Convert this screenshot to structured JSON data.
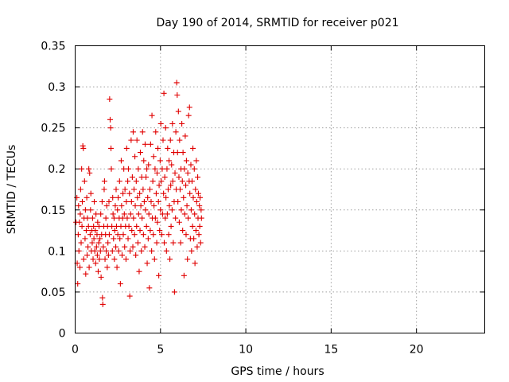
{
  "chart_data": {
    "type": "scatter",
    "title": "Day 190 of 2014, SRMTID for receiver p021",
    "xlabel": "GPS time / hours",
    "ylabel": "SRMTID / TECUs",
    "xlim": [
      0,
      24
    ],
    "ylim": [
      0,
      0.35
    ],
    "xticks": [
      0,
      5,
      10,
      15,
      20
    ],
    "xtick_labels": [
      "0",
      "5",
      "10",
      "15",
      "20"
    ],
    "yticks": [
      0,
      0.05,
      0.1,
      0.15,
      0.2,
      0.25,
      0.3,
      0.35
    ],
    "ytick_labels": [
      "0",
      "0.05",
      "0.1",
      "0.15",
      "0.2",
      "0.25",
      "0.3",
      "0.35"
    ],
    "grid": true,
    "marker": "+",
    "color": "#e00000",
    "series": [
      {
        "name": "p021",
        "points": [
          [
            0.05,
            0.135
          ],
          [
            0.1,
            0.165
          ],
          [
            0.12,
            0.085
          ],
          [
            0.15,
            0.06
          ],
          [
            0.18,
            0.12
          ],
          [
            0.2,
            0.155
          ],
          [
            0.22,
            0.1
          ],
          [
            0.25,
            0.135
          ],
          [
            0.28,
            0.08
          ],
          [
            0.3,
            0.145
          ],
          [
            0.32,
            0.175
          ],
          [
            0.35,
            0.11
          ],
          [
            0.38,
            0.2
          ],
          [
            0.4,
            0.13
          ],
          [
            0.42,
            0.16
          ],
          [
            0.45,
            0.228
          ],
          [
            0.48,
            0.225
          ],
          [
            0.5,
            0.09
          ],
          [
            0.52,
            0.14
          ],
          [
            0.55,
            0.185
          ],
          [
            0.58,
            0.115
          ],
          [
            0.6,
            0.15
          ],
          [
            0.62,
            0.072
          ],
          [
            0.65,
            0.125
          ],
          [
            0.68,
            0.165
          ],
          [
            0.7,
            0.095
          ],
          [
            0.72,
            0.14
          ],
          [
            0.75,
            0.105
          ],
          [
            0.78,
            0.13
          ],
          [
            0.8,
            0.2
          ],
          [
            0.82,
            0.08
          ],
          [
            0.85,
            0.195
          ],
          [
            0.88,
            0.12
          ],
          [
            0.9,
            0.15
          ],
          [
            0.92,
            0.17
          ],
          [
            0.95,
            0.1
          ],
          [
            0.98,
            0.125
          ],
          [
            1.0,
            0.11
          ],
          [
            1.02,
            0.14
          ],
          [
            1.05,
            0.09
          ],
          [
            1.08,
            0.13
          ],
          [
            1.1,
            0.115
          ],
          [
            1.12,
            0.16
          ],
          [
            1.15,
            0.1
          ],
          [
            1.18,
            0.125
          ],
          [
            1.2,
            0.085
          ],
          [
            1.22,
            0.145
          ],
          [
            1.25,
            0.105
          ],
          [
            1.28,
            0.12
          ],
          [
            1.3,
            0.095
          ],
          [
            1.32,
            0.135
          ],
          [
            1.35,
            0.075
          ],
          [
            1.38,
            0.11
          ],
          [
            1.4,
            0.13
          ],
          [
            1.42,
            0.09
          ],
          [
            1.45,
            0.115
          ],
          [
            1.48,
            0.1
          ],
          [
            1.5,
            0.145
          ],
          [
            1.52,
            0.068
          ],
          [
            1.55,
            0.12
          ],
          [
            1.58,
            0.16
          ],
          [
            1.6,
            0.043
          ],
          [
            1.62,
            0.035
          ],
          [
            1.65,
            0.105
          ],
          [
            1.68,
            0.13
          ],
          [
            1.7,
            0.175
          ],
          [
            1.72,
            0.185
          ],
          [
            1.75,
            0.09
          ],
          [
            1.78,
            0.12
          ],
          [
            1.8,
            0.14
          ],
          [
            1.82,
            0.1
          ],
          [
            1.85,
            0.155
          ],
          [
            1.88,
            0.08
          ],
          [
            1.9,
            0.13
          ],
          [
            1.92,
            0.11
          ],
          [
            1.95,
            0.095
          ],
          [
            1.98,
            0.16
          ],
          [
            2.0,
            0.12
          ],
          [
            2.02,
            0.285
          ],
          [
            2.05,
            0.26
          ],
          [
            2.08,
            0.25
          ],
          [
            2.1,
            0.225
          ],
          [
            2.12,
            0.2
          ],
          [
            2.15,
            0.13
          ],
          [
            2.18,
            0.1
          ],
          [
            2.2,
            0.165
          ],
          [
            2.22,
            0.145
          ],
          [
            2.25,
            0.115
          ],
          [
            2.28,
            0.14
          ],
          [
            2.3,
            0.09
          ],
          [
            2.32,
            0.125
          ],
          [
            2.35,
            0.155
          ],
          [
            2.38,
            0.105
          ],
          [
            2.4,
            0.175
          ],
          [
            2.42,
            0.13
          ],
          [
            2.45,
            0.08
          ],
          [
            2.48,
            0.15
          ],
          [
            2.5,
            0.12
          ],
          [
            2.52,
            0.165
          ],
          [
            2.55,
            0.1
          ],
          [
            2.58,
            0.14
          ],
          [
            2.6,
            0.185
          ],
          [
            2.62,
            0.115
          ],
          [
            2.65,
            0.06
          ],
          [
            2.68,
            0.13
          ],
          [
            2.7,
            0.21
          ],
          [
            2.72,
            0.155
          ],
          [
            2.75,
            0.095
          ],
          [
            2.78,
            0.14
          ],
          [
            2.8,
            0.17
          ],
          [
            2.82,
            0.12
          ],
          [
            2.85,
            0.2
          ],
          [
            2.88,
            0.145
          ],
          [
            2.9,
            0.105
          ],
          [
            2.92,
            0.175
          ],
          [
            2.95,
            0.13
          ],
          [
            2.98,
            0.09
          ],
          [
            3.0,
            0.16
          ],
          [
            3.02,
            0.225
          ],
          [
            3.05,
            0.14
          ],
          [
            3.08,
            0.185
          ],
          [
            3.1,
            0.115
          ],
          [
            3.12,
            0.2
          ],
          [
            3.15,
            0.13
          ],
          [
            3.18,
            0.17
          ],
          [
            3.2,
            0.045
          ],
          [
            3.22,
            0.1
          ],
          [
            3.25,
            0.145
          ],
          [
            3.28,
            0.235
          ],
          [
            3.3,
            0.16
          ],
          [
            3.32,
            0.125
          ],
          [
            3.35,
            0.19
          ],
          [
            3.38,
            0.105
          ],
          [
            3.4,
            0.245
          ],
          [
            3.42,
            0.14
          ],
          [
            3.45,
            0.175
          ],
          [
            3.48,
            0.12
          ],
          [
            3.5,
            0.215
          ],
          [
            3.52,
            0.155
          ],
          [
            3.55,
            0.095
          ],
          [
            3.58,
            0.185
          ],
          [
            3.6,
            0.13
          ],
          [
            3.62,
            0.235
          ],
          [
            3.65,
            0.165
          ],
          [
            3.68,
            0.11
          ],
          [
            3.7,
            0.2
          ],
          [
            3.72,
            0.145
          ],
          [
            3.75,
            0.075
          ],
          [
            3.78,
            0.17
          ],
          [
            3.8,
            0.125
          ],
          [
            3.82,
            0.22
          ],
          [
            3.85,
            0.155
          ],
          [
            3.88,
            0.1
          ],
          [
            3.9,
            0.19
          ],
          [
            3.92,
            0.14
          ],
          [
            3.95,
            0.245
          ],
          [
            3.98,
            0.175
          ],
          [
            4.0,
            0.12
          ],
          [
            4.02,
            0.21
          ],
          [
            4.05,
            0.16
          ],
          [
            4.08,
            0.105
          ],
          [
            4.1,
            0.23
          ],
          [
            4.12,
            0.15
          ],
          [
            4.15,
            0.19
          ],
          [
            4.18,
            0.13
          ],
          [
            4.2,
            0.2
          ],
          [
            4.22,
            0.085
          ],
          [
            4.25,
            0.165
          ],
          [
            4.28,
            0.115
          ],
          [
            4.3,
            0.205
          ],
          [
            4.32,
            0.145
          ],
          [
            4.35,
            0.055
          ],
          [
            4.38,
            0.175
          ],
          [
            4.4,
            0.125
          ],
          [
            4.42,
            0.23
          ],
          [
            4.45,
            0.16
          ],
          [
            4.48,
            0.1
          ],
          [
            4.5,
            0.265
          ],
          [
            4.52,
            0.14
          ],
          [
            4.55,
            0.185
          ],
          [
            4.58,
            0.12
          ],
          [
            4.6,
            0.215
          ],
          [
            4.62,
            0.155
          ],
          [
            4.65,
            0.09
          ],
          [
            4.68,
            0.2
          ],
          [
            4.7,
            0.14
          ],
          [
            4.72,
            0.245
          ],
          [
            4.75,
            0.17
          ],
          [
            4.78,
            0.11
          ],
          [
            4.8,
            0.195
          ],
          [
            4.82,
            0.135
          ],
          [
            4.85,
            0.225
          ],
          [
            4.88,
            0.16
          ],
          [
            4.9,
            0.07
          ],
          [
            4.92,
            0.18
          ],
          [
            4.95,
            0.125
          ],
          [
            4.98,
            0.21
          ],
          [
            5.0,
            0.15
          ],
          [
            5.02,
            0.255
          ],
          [
            5.05,
            0.185
          ],
          [
            5.08,
            0.12
          ],
          [
            5.1,
            0.2
          ],
          [
            5.12,
            0.145
          ],
          [
            5.15,
            0.235
          ],
          [
            5.18,
            0.17
          ],
          [
            5.2,
            0.292
          ],
          [
            5.22,
            0.11
          ],
          [
            5.25,
            0.19
          ],
          [
            5.28,
            0.14
          ],
          [
            5.3,
            0.25
          ],
          [
            5.32,
            0.165
          ],
          [
            5.35,
            0.1
          ],
          [
            5.38,
            0.2
          ],
          [
            5.4,
            0.145
          ],
          [
            5.42,
            0.225
          ],
          [
            5.45,
            0.175
          ],
          [
            5.48,
            0.12
          ],
          [
            5.5,
            0.21
          ],
          [
            5.52,
            0.155
          ],
          [
            5.55,
            0.09
          ],
          [
            5.58,
            0.235
          ],
          [
            5.6,
            0.18
          ],
          [
            5.62,
            0.13
          ],
          [
            5.65,
            0.205
          ],
          [
            5.68,
            0.15
          ],
          [
            5.7,
            0.255
          ],
          [
            5.72,
            0.185
          ],
          [
            5.75,
            0.11
          ],
          [
            5.78,
            0.22
          ],
          [
            5.8,
            0.16
          ],
          [
            5.82,
            0.05
          ],
          [
            5.85,
            0.195
          ],
          [
            5.88,
            0.14
          ],
          [
            5.9,
            0.245
          ],
          [
            5.92,
            0.175
          ],
          [
            5.95,
            0.305
          ],
          [
            5.98,
            0.29
          ],
          [
            6.0,
            0.22
          ],
          [
            6.02,
            0.16
          ],
          [
            6.05,
            0.27
          ],
          [
            6.08,
            0.19
          ],
          [
            6.1,
            0.135
          ],
          [
            6.12,
            0.235
          ],
          [
            6.15,
            0.175
          ],
          [
            6.18,
            0.11
          ],
          [
            6.2,
            0.2
          ],
          [
            6.22,
            0.15
          ],
          [
            6.25,
            0.255
          ],
          [
            6.28,
            0.185
          ],
          [
            6.3,
            0.125
          ],
          [
            6.32,
            0.22
          ],
          [
            6.35,
            0.165
          ],
          [
            6.38,
            0.07
          ],
          [
            6.4,
            0.2
          ],
          [
            6.42,
            0.145
          ],
          [
            6.45,
            0.24
          ],
          [
            6.48,
            0.18
          ],
          [
            6.5,
            0.12
          ],
          [
            6.52,
            0.21
          ],
          [
            6.55,
            0.155
          ],
          [
            6.58,
            0.09
          ],
          [
            6.6,
            0.195
          ],
          [
            6.62,
            0.14
          ],
          [
            6.65,
            0.265
          ],
          [
            6.68,
            0.185
          ],
          [
            6.7,
            0.275
          ],
          [
            6.72,
            0.17
          ],
          [
            6.75,
            0.115
          ],
          [
            6.78,
            0.205
          ],
          [
            6.8,
            0.15
          ],
          [
            6.82,
            0.1
          ],
          [
            6.85,
            0.185
          ],
          [
            6.88,
            0.13
          ],
          [
            6.9,
            0.225
          ],
          [
            6.92,
            0.165
          ],
          [
            6.95,
            0.115
          ],
          [
            6.98,
            0.2
          ],
          [
            7.0,
            0.145
          ],
          [
            7.02,
            0.085
          ],
          [
            7.05,
            0.175
          ],
          [
            7.08,
            0.125
          ],
          [
            7.1,
            0.21
          ],
          [
            7.12,
            0.16
          ],
          [
            7.15,
            0.105
          ],
          [
            7.18,
            0.19
          ],
          [
            7.2,
            0.14
          ],
          [
            7.22,
            0.17
          ],
          [
            7.25,
            0.12
          ],
          [
            7.28,
            0.155
          ],
          [
            7.3,
            0.13
          ],
          [
            7.32,
            0.165
          ],
          [
            7.35,
            0.11
          ],
          [
            7.38,
            0.15
          ],
          [
            7.4,
            0.14
          ]
        ]
      }
    ]
  }
}
